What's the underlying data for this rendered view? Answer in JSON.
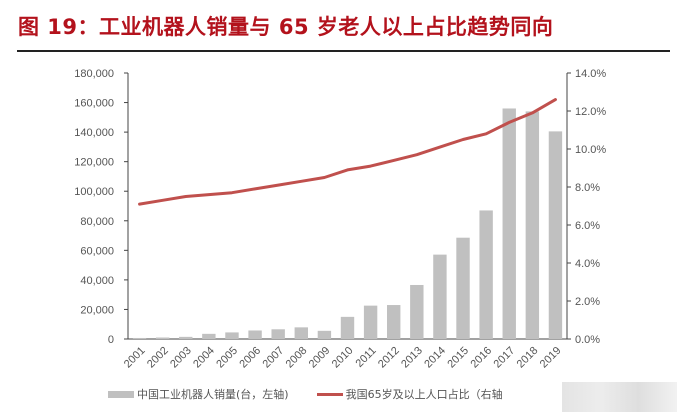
{
  "title": "图 19：工业机器人销量与 65 岁老人以上占比趋势同向",
  "chart_data": {
    "type": "bar+line",
    "title": "图 19：工业机器人销量与 65 岁老人以上占比趋势同向",
    "categories": [
      "2001",
      "2002",
      "2003",
      "2004",
      "2005",
      "2006",
      "2007",
      "2008",
      "2009",
      "2010",
      "2011",
      "2012",
      "2013",
      "2014",
      "2015",
      "2016",
      "2017",
      "2018",
      "2019"
    ],
    "series": [
      {
        "name": "中国工业机器人销量(台，左轴)",
        "type": "bar",
        "axis": "left",
        "color": "#c0c0c0",
        "values": [
          700,
          1000,
          1451,
          3493,
          4461,
          5770,
          6581,
          7879,
          5525,
          14978,
          22577,
          22987,
          36560,
          57096,
          68556,
          87000,
          156000,
          154000,
          140500
        ]
      },
      {
        "name": "我国65岁及以上人口占比（右轴",
        "type": "line",
        "axis": "right",
        "color": "#c0504d",
        "values": [
          7.1,
          7.3,
          7.5,
          7.6,
          7.7,
          7.9,
          8.1,
          8.3,
          8.5,
          8.9,
          9.1,
          9.4,
          9.7,
          10.1,
          10.5,
          10.8,
          11.4,
          11.9,
          12.6
        ]
      }
    ],
    "left_axis": {
      "ylim": [
        0,
        180000
      ],
      "ticks": [
        "0",
        "20,000",
        "40,000",
        "60,000",
        "80,000",
        "100,000",
        "120,000",
        "140,000",
        "160,000",
        "180,000"
      ]
    },
    "right_axis": {
      "ylim": [
        0,
        14
      ],
      "ticks": [
        "0.0%",
        "2.0%",
        "4.0%",
        "6.0%",
        "8.0%",
        "10.0%",
        "12.0%",
        "14.0%"
      ]
    },
    "legend": "bottom",
    "grid": false
  }
}
